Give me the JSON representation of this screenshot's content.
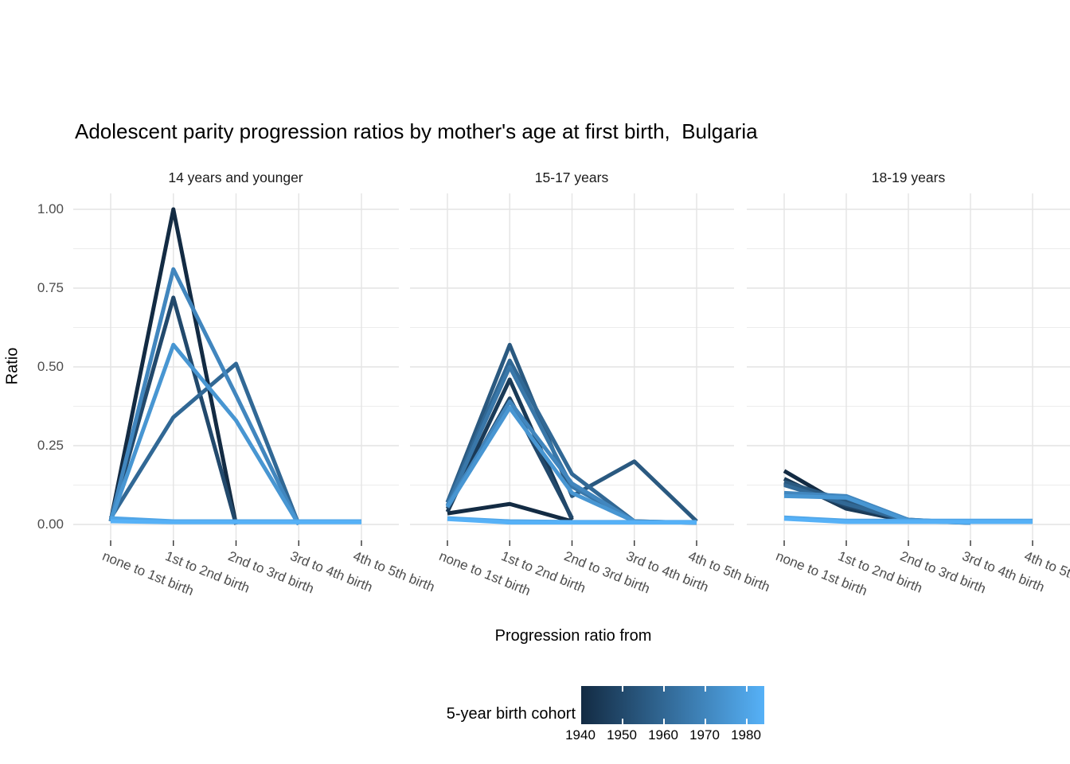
{
  "title": "Adolescent parity progression ratios by mother's age at first birth,  Bulgaria",
  "chart_data": {
    "type": "line",
    "title": "Adolescent parity progression ratios by mother's age at first birth,  Bulgaria",
    "xlabel": "Progression ratio from",
    "ylabel": "Ratio",
    "categories": [
      "none to 1st birth",
      "1st to 2nd birth",
      "2nd to 3rd birth",
      "3rd to 4th birth",
      "4th to 5th birth"
    ],
    "y_ticks": [
      "0.00",
      "0.25",
      "0.50",
      "0.75",
      "1.00"
    ],
    "ylim": [
      0,
      1
    ],
    "grid": "on",
    "legend": {
      "title": "5-year birth cohort",
      "position": "bottom",
      "type": "colorbar",
      "gradient_low": "#132B43",
      "gradient_high": "#56B1F7",
      "domain": [
        1940,
        1985
      ],
      "tick_labels": [
        "1940",
        "1950",
        "1960",
        "1970",
        "1980"
      ]
    },
    "facets": [
      {
        "label": "14 years and younger",
        "series": [
          {
            "cohort": 1940,
            "color": "#132B43",
            "values": [
              0.01,
              1.0,
              0.0,
              null,
              null
            ]
          },
          {
            "cohort": 1950,
            "color": "#22496C",
            "values": [
              0.01,
              0.72,
              0.0,
              null,
              null
            ]
          },
          {
            "cohort": 1960,
            "color": "#316895",
            "values": [
              0.02,
              0.34,
              0.51,
              0.0,
              null
            ]
          },
          {
            "cohort": 1970,
            "color": "#4186BE",
            "values": [
              0.01,
              0.81,
              0.41,
              0.0,
              null
            ]
          },
          {
            "cohort": 1975,
            "color": "#4896D2",
            "values": [
              0.01,
              0.57,
              0.33,
              0.0,
              null
            ]
          },
          {
            "cohort": 1980,
            "color": "#50A5E7",
            "values": [
              0.02,
              0.01,
              0.01,
              0.01,
              0.01
            ]
          },
          {
            "cohort": 1985,
            "color": "#56B1F7",
            "values": [
              0.01,
              0.007,
              0.007,
              0.007,
              0.007
            ]
          }
        ]
      },
      {
        "label": "15-17 years",
        "series": [
          {
            "cohort": 1940,
            "color": "#132B43",
            "values": [
              0.035,
              0.065,
              0.01,
              null,
              null
            ]
          },
          {
            "cohort": 1945,
            "color": "#1A3A57",
            "values": [
              0.04,
              0.46,
              0.015,
              null,
              null
            ]
          },
          {
            "cohort": 1950,
            "color": "#22496C",
            "values": [
              0.05,
              0.4,
              0.02,
              null,
              null
            ]
          },
          {
            "cohort": 1955,
            "color": "#2A5980",
            "values": [
              0.07,
              0.57,
              0.09,
              0.2,
              0.01
            ]
          },
          {
            "cohort": 1960,
            "color": "#316895",
            "values": [
              0.07,
              0.52,
              0.16,
              0.01,
              0.005
            ]
          },
          {
            "cohort": 1965,
            "color": "#3977A9",
            "values": [
              0.06,
              0.5,
              0.12,
              0.01,
              0.005
            ]
          },
          {
            "cohort": 1970,
            "color": "#4186BE",
            "values": [
              0.06,
              0.39,
              0.13,
              0.01,
              null
            ]
          },
          {
            "cohort": 1975,
            "color": "#4896D2",
            "values": [
              0.055,
              0.37,
              0.1,
              0.01,
              null
            ]
          },
          {
            "cohort": 1980,
            "color": "#50A5E7",
            "values": [
              0.02,
              0.01,
              0.008,
              0.008,
              0.008
            ]
          },
          {
            "cohort": 1985,
            "color": "#56B1F7",
            "values": [
              0.017,
              0.006,
              0.006,
              0.006,
              0.006
            ]
          }
        ]
      },
      {
        "label": "18-19 years",
        "series": [
          {
            "cohort": 1940,
            "color": "#132B43",
            "values": [
              0.17,
              0.055,
              0.01,
              null,
              null
            ]
          },
          {
            "cohort": 1945,
            "color": "#1A3A57",
            "values": [
              0.145,
              0.05,
              0.01,
              null,
              null
            ]
          },
          {
            "cohort": 1950,
            "color": "#22496C",
            "values": [
              0.13,
              0.06,
              0.012,
              null,
              null
            ]
          },
          {
            "cohort": 1955,
            "color": "#2A5980",
            "values": [
              0.135,
              0.075,
              0.015,
              0.005,
              null
            ]
          },
          {
            "cohort": 1960,
            "color": "#316895",
            "values": [
              0.125,
              0.065,
              0.012,
              0.005,
              null
            ]
          },
          {
            "cohort": 1970,
            "color": "#4186BE",
            "values": [
              0.1,
              0.09,
              0.015,
              0.005,
              null
            ]
          },
          {
            "cohort": 1975,
            "color": "#4896D2",
            "values": [
              0.09,
              0.085,
              0.012,
              0.005,
              null
            ]
          },
          {
            "cohort": 1980,
            "color": "#50A5E7",
            "values": [
              0.022,
              0.012,
              0.012,
              0.012,
              0.012
            ]
          },
          {
            "cohort": 1985,
            "color": "#56B1F7",
            "values": [
              0.018,
              0.008,
              0.008,
              0.008,
              0.008
            ]
          }
        ]
      }
    ]
  }
}
